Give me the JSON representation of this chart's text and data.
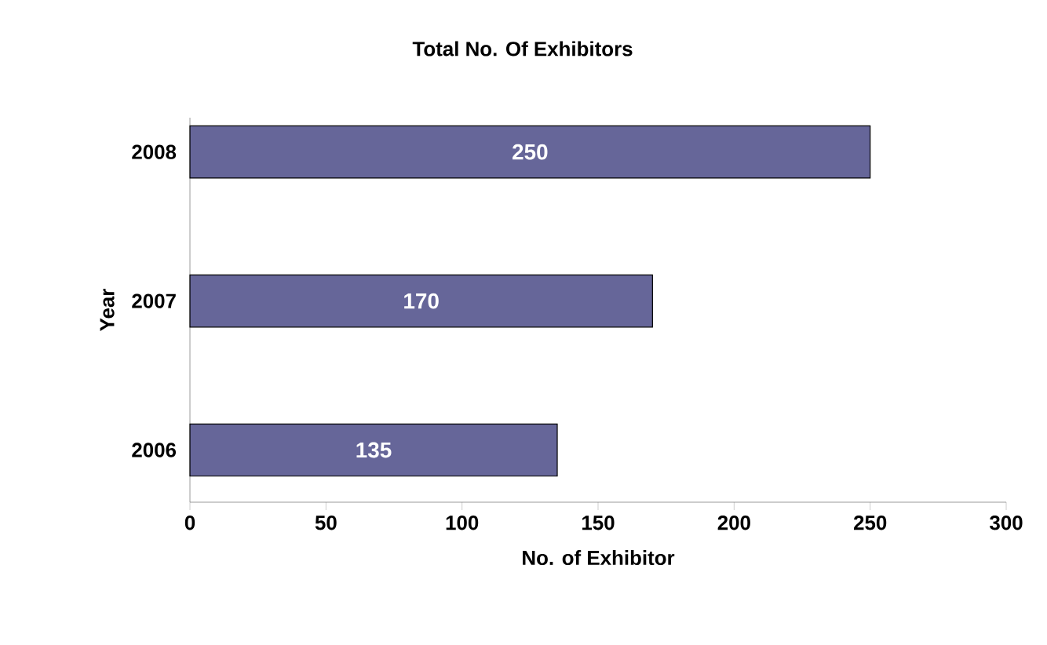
{
  "chart_data": {
    "type": "bar",
    "orientation": "horizontal",
    "title": "Total No. Of Exhibitors",
    "xlabel": "No. of Exhibitor",
    "ylabel": "Year",
    "categories": [
      "2008",
      "2007",
      "2006"
    ],
    "values": [
      250,
      170,
      135
    ],
    "color": "#666699",
    "xlim": [
      0,
      300
    ],
    "xticks": [
      0,
      50,
      100,
      150,
      200,
      250,
      300
    ],
    "grid": false,
    "data_labels": true
  }
}
